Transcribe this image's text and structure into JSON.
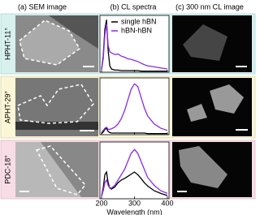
{
  "headers": [
    "(a) SEM image",
    "(b) CL spectra",
    "(c) 300 nm CL image"
  ],
  "rows": [
    {
      "label": "HPHT-11°"
    },
    {
      "label": "APHT-29°"
    },
    {
      "label": "PDC-18°"
    }
  ],
  "chart_data": [
    {
      "type": "line",
      "xlim": [
        195,
        405
      ],
      "ylim": [
        0,
        1
      ],
      "xticks": [
        200,
        300,
        400
      ],
      "legend": "upper-right",
      "x": [
        200,
        205,
        210,
        215,
        220,
        225,
        230,
        240,
        250,
        260,
        270,
        280,
        290,
        300,
        310,
        320,
        330,
        340,
        360,
        380,
        400
      ],
      "series": [
        {
          "name": "single hBN",
          "color": "#000000",
          "values": [
            0.05,
            0.3,
            0.8,
            0.98,
            0.4,
            0.12,
            0.06,
            0.04,
            0.04,
            0.03,
            0.03,
            0.03,
            0.03,
            0.03,
            0.03,
            0.02,
            0.02,
            0.02,
            0.02,
            0.02,
            0.02
          ]
        },
        {
          "name": "hBN-hBN",
          "color": "#8a2be2",
          "values": [
            0.05,
            0.25,
            0.7,
            0.9,
            0.5,
            0.38,
            0.36,
            0.33,
            0.34,
            0.3,
            0.28,
            0.25,
            0.24,
            0.22,
            0.2,
            0.17,
            0.14,
            0.12,
            0.1,
            0.08,
            0.06
          ]
        }
      ]
    },
    {
      "type": "line",
      "xlim": [
        195,
        405
      ],
      "ylim": [
        0,
        1
      ],
      "xticks": [
        200,
        300,
        400
      ],
      "x": [
        200,
        205,
        210,
        215,
        220,
        225,
        230,
        240,
        250,
        260,
        270,
        280,
        290,
        300,
        310,
        320,
        330,
        340,
        360,
        380,
        400
      ],
      "series": [
        {
          "color": "#000000",
          "values": [
            0.02,
            0.05,
            0.1,
            0.12,
            0.06,
            0.04,
            0.03,
            0.03,
            0.03,
            0.03,
            0.03,
            0.03,
            0.03,
            0.03,
            0.03,
            0.03,
            0.03,
            0.02,
            0.02,
            0.02,
            0.02
          ]
        },
        {
          "color": "#8a2be2",
          "values": [
            0.05,
            0.08,
            0.12,
            0.14,
            0.1,
            0.1,
            0.11,
            0.14,
            0.2,
            0.3,
            0.45,
            0.65,
            0.85,
            0.95,
            0.9,
            0.7,
            0.5,
            0.35,
            0.2,
            0.12,
            0.08
          ]
        }
      ]
    },
    {
      "type": "line",
      "xlim": [
        195,
        405
      ],
      "ylim": [
        0,
        1
      ],
      "xticks": [
        200,
        300,
        400
      ],
      "xlabel": "Wavelength (nm)",
      "x": [
        200,
        205,
        210,
        215,
        220,
        225,
        230,
        240,
        250,
        260,
        270,
        280,
        290,
        300,
        310,
        320,
        330,
        340,
        360,
        380,
        400
      ],
      "series": [
        {
          "color": "#000000",
          "values": [
            0.05,
            0.2,
            0.45,
            0.5,
            0.3,
            0.2,
            0.18,
            0.22,
            0.3,
            0.35,
            0.38,
            0.42,
            0.46,
            0.5,
            0.45,
            0.38,
            0.3,
            0.24,
            0.15,
            0.1,
            0.06
          ]
        },
        {
          "color": "#8a2be2",
          "values": [
            0.05,
            0.15,
            0.3,
            0.35,
            0.25,
            0.2,
            0.2,
            0.25,
            0.35,
            0.45,
            0.55,
            0.7,
            0.85,
            0.92,
            0.85,
            0.7,
            0.55,
            0.4,
            0.25,
            0.15,
            0.1
          ]
        }
      ]
    }
  ]
}
